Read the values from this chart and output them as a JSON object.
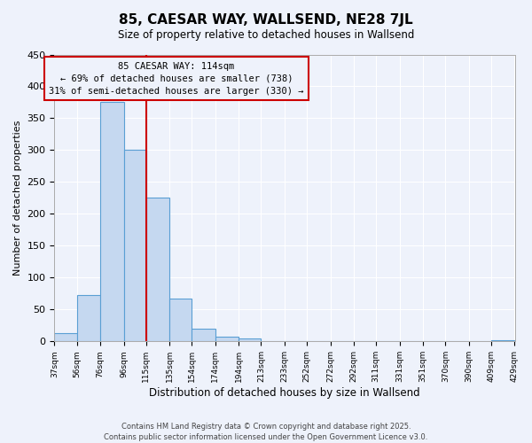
{
  "title": "85, CAESAR WAY, WALLSEND, NE28 7JL",
  "subtitle": "Size of property relative to detached houses in Wallsend",
  "xlabel": "Distribution of detached houses by size in Wallsend",
  "ylabel": "Number of detached properties",
  "bar_edges": [
    37,
    56,
    76,
    96,
    115,
    135,
    154,
    174,
    194,
    213,
    233,
    252,
    272,
    292,
    311,
    331,
    351,
    370,
    390,
    409,
    429
  ],
  "bar_heights": [
    13,
    73,
    375,
    300,
    225,
    67,
    20,
    7,
    5,
    1,
    0,
    0,
    0,
    0,
    0,
    0,
    0,
    0,
    0,
    2
  ],
  "bar_color": "#c5d8f0",
  "bar_edgecolor": "#5a9fd4",
  "vline_x": 115,
  "vline_color": "#cc0000",
  "annotation_title": "85 CAESAR WAY: 114sqm",
  "annotation_line1": "← 69% of detached houses are smaller (738)",
  "annotation_line2": "31% of semi-detached houses are larger (330) →",
  "annotation_box_edgecolor": "#cc0000",
  "annotation_fontsize": 7.5,
  "ylim": [
    0,
    450
  ],
  "yticks": [
    0,
    50,
    100,
    150,
    200,
    250,
    300,
    350,
    400,
    450
  ],
  "xtick_labels": [
    "37sqm",
    "56sqm",
    "76sqm",
    "96sqm",
    "115sqm",
    "135sqm",
    "154sqm",
    "174sqm",
    "194sqm",
    "213sqm",
    "233sqm",
    "252sqm",
    "272sqm",
    "292sqm",
    "311sqm",
    "331sqm",
    "351sqm",
    "370sqm",
    "390sqm",
    "409sqm",
    "429sqm"
  ],
  "background_color": "#eef2fb",
  "grid_color": "#ffffff",
  "footer1": "Contains HM Land Registry data © Crown copyright and database right 2025.",
  "footer2": "Contains public sector information licensed under the Open Government Licence v3.0."
}
